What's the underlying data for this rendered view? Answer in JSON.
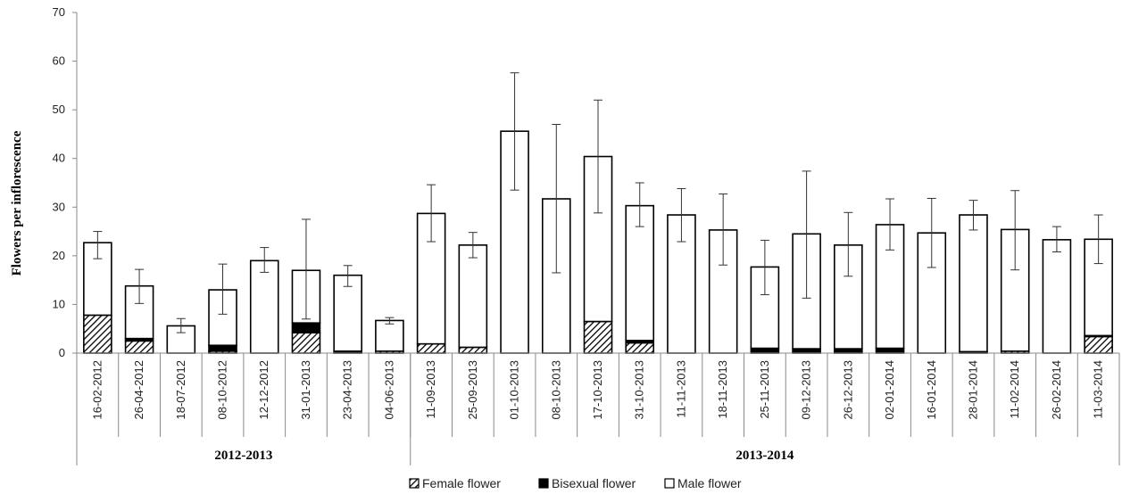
{
  "chart_data": {
    "type": "bar",
    "stacked": true,
    "ylabel": "Flowers per inflorescence",
    "ylim": [
      0,
      70
    ],
    "yticks": [
      "0",
      "10",
      "20",
      "30",
      "40",
      "50",
      "60",
      "70"
    ],
    "grid": false,
    "legend_position": "bottom",
    "categories": [
      "16-02-2012",
      "26-04-2012",
      "18-07-2012",
      "08-10-2012",
      "12-12-2012",
      "31-01-2013",
      "23-04-2013",
      "04-06-2013",
      "11-09-2013",
      "25-09-2013",
      "01-10-2013",
      "08-10-2013",
      "17-10-2013",
      "31-10-2013",
      "11-11-2013",
      "18-11-2013",
      "25-11-2013",
      "09-12-2013",
      "26-12-2013",
      "02-01-2014",
      "16-01-2014",
      "28-01-2014",
      "11-02-2014",
      "26-02-2014",
      "11-03-2014"
    ],
    "groups": [
      {
        "label": "2012-2013",
        "count": 8
      },
      {
        "label": "2013-2014",
        "count": 17
      }
    ],
    "series": [
      {
        "name": "Female flower",
        "pattern": "hatch",
        "color": "#000000",
        "values": [
          7.8,
          2.5,
          0,
          0.4,
          0,
          4.2,
          0,
          0.4,
          1.9,
          1.2,
          0,
          0,
          6.5,
          2.1,
          0,
          0,
          0,
          0.3,
          0.2,
          0,
          0,
          0,
          0.4,
          0,
          3.4
        ]
      },
      {
        "name": "Bisexual flower",
        "pattern": "solid",
        "color": "#000000",
        "values": [
          0,
          0.5,
          0,
          1.2,
          0,
          2,
          0.4,
          0,
          0,
          0,
          0,
          0,
          0,
          0.5,
          0,
          0,
          1,
          0.6,
          0.7,
          1,
          0,
          0.3,
          0,
          0,
          0.2
        ]
      },
      {
        "name": "Male flower",
        "pattern": "none",
        "color": "#ffffff",
        "values": [
          14.9,
          10.8,
          5.6,
          11.4,
          19,
          10.8,
          15.6,
          6.3,
          26.8,
          21,
          45.6,
          31.7,
          33.9,
          27.7,
          28.4,
          25.3,
          16.7,
          23.6,
          21.3,
          25.4,
          24.7,
          28.1,
          25,
          23.3,
          19.8
        ]
      }
    ],
    "error_upper": [
      25,
      17.2,
      7.1,
      18.3,
      21.7,
      27.5,
      18,
      7.3,
      34.6,
      24.8,
      57.6,
      47,
      52,
      35,
      33.8,
      32.7,
      23.2,
      37.4,
      28.9,
      31.7,
      31.8,
      31.4,
      33.4,
      26,
      28.4
    ],
    "error_lower": [
      19.4,
      10.2,
      4.2,
      8,
      16.6,
      7,
      13.7,
      6,
      22.9,
      19.6,
      33.5,
      16.5,
      28.8,
      26,
      22.9,
      18.1,
      12,
      11.3,
      15.8,
      21.2,
      17.6,
      25.3,
      17.1,
      20.8,
      18.4
    ]
  }
}
